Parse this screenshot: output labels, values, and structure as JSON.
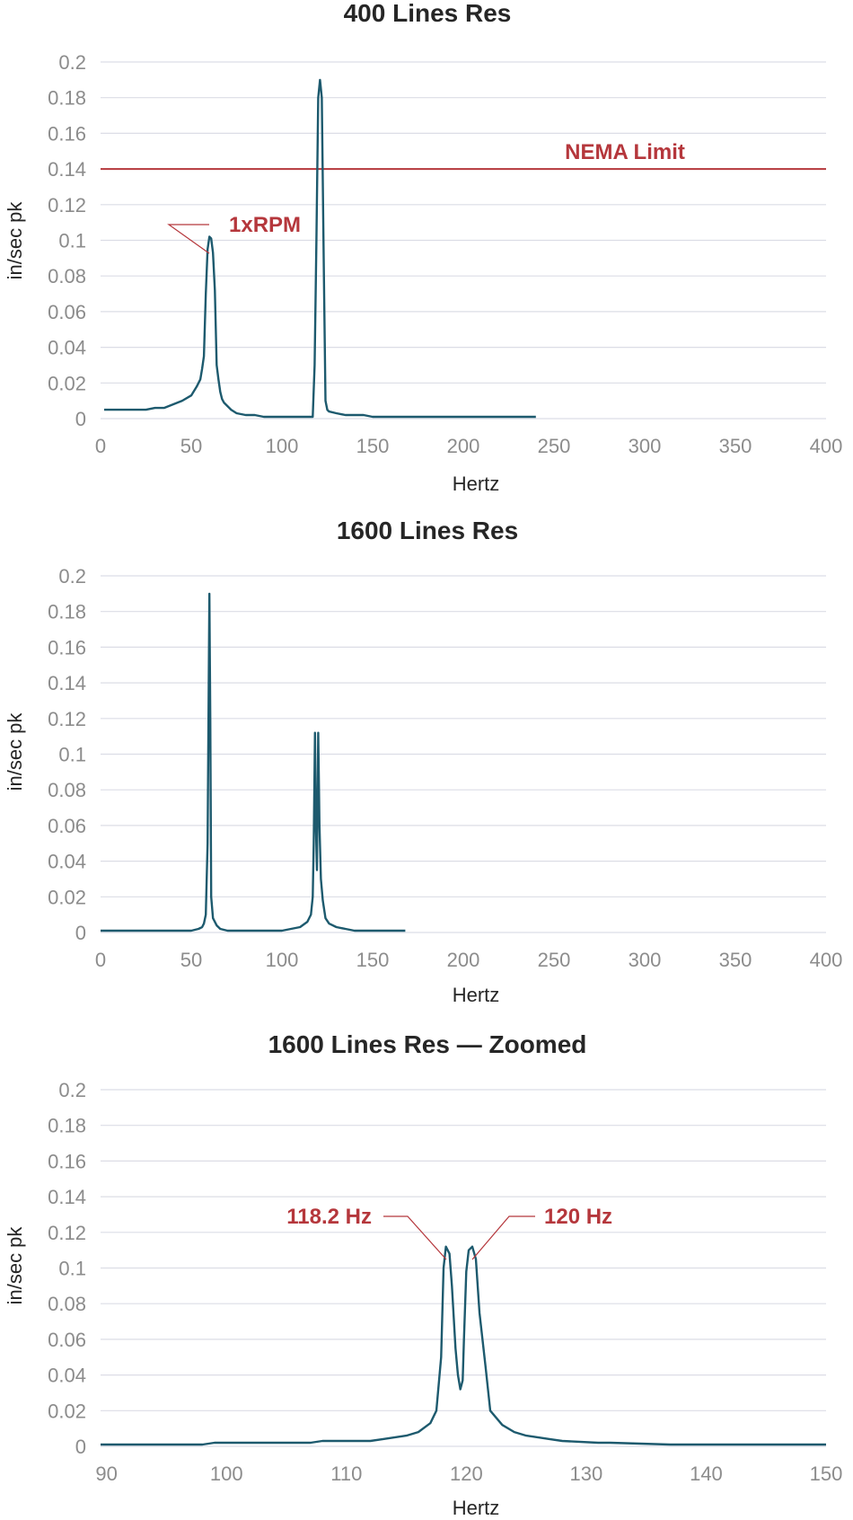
{
  "colors": {
    "series": "#1d5a6e",
    "annotation": "#b5373c",
    "grid": "#dcdde6",
    "tick": "#8c8c8c",
    "text": "#262626"
  },
  "chart_data": [
    {
      "type": "line",
      "title": "400 Lines Res",
      "xlabel": "Hertz",
      "ylabel": "in/sec pk",
      "xlim": [
        0,
        400
      ],
      "ylim": [
        0,
        0.2
      ],
      "xticks": [
        0,
        50,
        100,
        150,
        200,
        250,
        300,
        350,
        400
      ],
      "xtick_labels": [
        "0",
        "50",
        "100",
        "150",
        "200",
        "250",
        "300",
        "350",
        "400"
      ],
      "yticks": [
        0,
        0.02,
        0.04,
        0.06,
        0.08,
        0.1,
        0.12,
        0.14,
        0.16,
        0.18,
        0.2
      ],
      "ytick_labels": [
        "0",
        "0.02",
        "0.04",
        "0.06",
        "0.08",
        "0.1",
        "0.12",
        "0.14",
        "0.16",
        "0.18",
        "0.2"
      ],
      "grid": true,
      "series": [
        {
          "x": [
            2,
            25,
            30,
            35,
            40,
            45,
            50,
            53,
            55,
            56,
            57,
            58,
            59,
            60,
            61,
            62,
            63,
            64,
            65,
            66,
            67,
            68,
            70,
            72,
            75,
            80,
            85,
            90,
            95,
            100,
            105,
            110,
            115,
            117,
            118,
            119,
            120,
            121,
            122,
            123,
            124,
            125,
            126,
            130,
            135,
            145,
            150,
            160,
            200,
            240
          ],
          "y": [
            0.005,
            0.005,
            0.006,
            0.006,
            0.008,
            0.01,
            0.013,
            0.018,
            0.022,
            0.028,
            0.035,
            0.07,
            0.095,
            0.102,
            0.101,
            0.093,
            0.072,
            0.03,
            0.022,
            0.015,
            0.011,
            0.009,
            0.007,
            0.005,
            0.003,
            0.002,
            0.002,
            0.001,
            0.001,
            0.001,
            0.001,
            0.001,
            0.001,
            0.001,
            0.03,
            0.1,
            0.18,
            0.19,
            0.18,
            0.09,
            0.01,
            0.005,
            0.004,
            0.003,
            0.002,
            0.002,
            0.001,
            0.001,
            0.001,
            0.001
          ]
        }
      ],
      "reference_line": {
        "y": 0.14,
        "label": "NEMA Limit"
      },
      "annotations": [
        {
          "text": "1xRPM",
          "x": 59,
          "y": 0.095
        }
      ]
    },
    {
      "type": "line",
      "title": "1600 Lines Res",
      "xlabel": "Hertz",
      "ylabel": "in/sec pk",
      "xlim": [
        0,
        400
      ],
      "ylim": [
        0,
        0.2
      ],
      "xticks": [
        0,
        50,
        100,
        150,
        200,
        250,
        300,
        350,
        400
      ],
      "xtick_labels": [
        "0",
        "50",
        "100",
        "150",
        "200",
        "250",
        "300",
        "350",
        "400"
      ],
      "yticks": [
        0,
        0.02,
        0.04,
        0.06,
        0.08,
        0.1,
        0.12,
        0.14,
        0.16,
        0.18,
        0.2
      ],
      "ytick_labels": [
        "0",
        "0.02",
        "0.04",
        "0.06",
        "0.08",
        "0.1",
        "0.12",
        "0.14",
        "0.16",
        "0.18",
        "0.2"
      ],
      "grid": true,
      "series": [
        {
          "x": [
            0,
            50,
            54,
            56,
            57,
            58,
            59,
            59.5,
            60,
            60.5,
            61,
            62,
            64,
            66,
            70,
            100,
            105,
            110,
            114,
            116,
            117,
            117.5,
            118.2,
            118.7,
            119.3,
            120,
            120.7,
            121.5,
            122.5,
            124,
            126,
            130,
            135,
            140,
            150,
            168
          ],
          "y": [
            0.001,
            0.001,
            0.002,
            0.003,
            0.005,
            0.01,
            0.05,
            0.12,
            0.19,
            0.12,
            0.02,
            0.008,
            0.004,
            0.002,
            0.001,
            0.001,
            0.002,
            0.003,
            0.006,
            0.01,
            0.02,
            0.05,
            0.112,
            0.06,
            0.035,
            0.112,
            0.06,
            0.03,
            0.018,
            0.008,
            0.005,
            0.003,
            0.002,
            0.001,
            0.001,
            0.001
          ]
        }
      ]
    },
    {
      "type": "line",
      "title": "1600 Lines Res — Zoomed",
      "xlabel": "Hertz",
      "ylabel": "in/sec pk",
      "xlim": [
        89.5,
        150
      ],
      "ylim": [
        0,
        0.2
      ],
      "xticks": [
        90,
        100,
        110,
        120,
        130,
        140,
        150
      ],
      "xtick_labels": [
        "90",
        "100",
        "110",
        "120",
        "130",
        "140",
        "150"
      ],
      "yticks": [
        0,
        0.02,
        0.04,
        0.06,
        0.08,
        0.1,
        0.12,
        0.14,
        0.16,
        0.18,
        0.2
      ],
      "ytick_labels": [
        "0",
        "0.02",
        "0.04",
        "0.06",
        "0.08",
        "0.1",
        "0.12",
        "0.14",
        "0.16",
        "0.18",
        "0.2"
      ],
      "grid": true,
      "series": [
        {
          "x": [
            89.5,
            98,
            99,
            107,
            108,
            112,
            113,
            114,
            115,
            116,
            117,
            117.5,
            117.9,
            118.1,
            118.3,
            118.6,
            118.8,
            119.1,
            119.3,
            119.5,
            119.7,
            119.8,
            120.0,
            120.2,
            120.5,
            120.8,
            121.1,
            121.6,
            122.0,
            123,
            124,
            125,
            126,
            127,
            128,
            131,
            132,
            137,
            138,
            150
          ],
          "y": [
            0.001,
            0.001,
            0.002,
            0.002,
            0.003,
            0.003,
            0.004,
            0.005,
            0.006,
            0.008,
            0.013,
            0.02,
            0.05,
            0.1,
            0.112,
            0.108,
            0.09,
            0.055,
            0.04,
            0.032,
            0.037,
            0.06,
            0.098,
            0.11,
            0.112,
            0.105,
            0.075,
            0.045,
            0.02,
            0.012,
            0.008,
            0.006,
            0.005,
            0.004,
            0.003,
            0.002,
            0.002,
            0.001,
            0.001,
            0.001
          ]
        }
      ],
      "annotations": [
        {
          "text": "118.2 Hz",
          "x": 118.3,
          "y": 0.11
        },
        {
          "text": "120 Hz",
          "x": 120.3,
          "y": 0.11
        }
      ]
    }
  ]
}
